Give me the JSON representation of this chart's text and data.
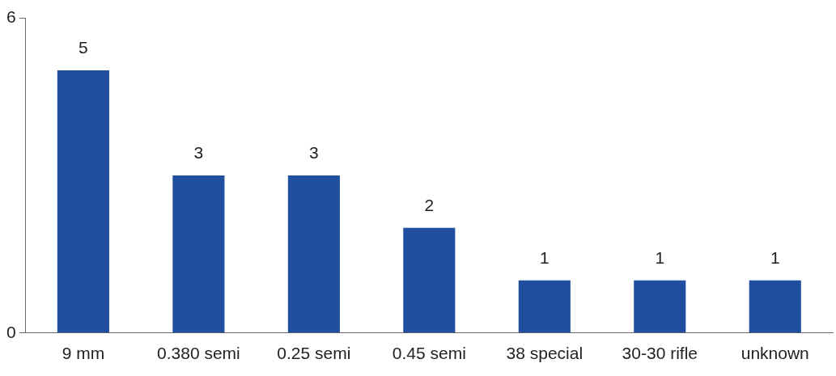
{
  "chart_data": {
    "type": "bar",
    "categories": [
      "9 mm",
      "0.380 semi",
      "0.25 semi",
      "0.45 semi",
      "38 special",
      "30-30 rifle",
      "unknown"
    ],
    "values": [
      5,
      3,
      3,
      2,
      1,
      1,
      1
    ],
    "color": "#1f4f9e",
    "ylim": [
      0,
      6
    ],
    "yticks": [
      0,
      6
    ],
    "grid": false,
    "legend": false,
    "data_labels": true
  }
}
